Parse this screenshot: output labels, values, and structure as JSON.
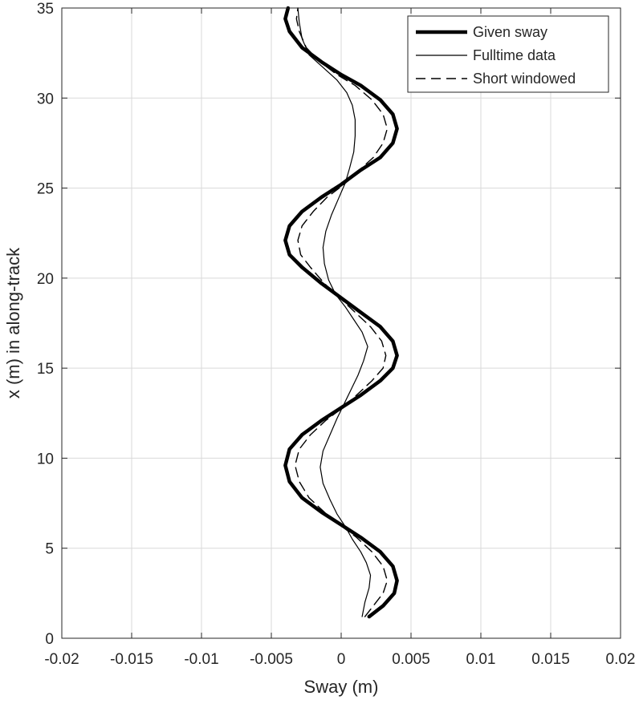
{
  "chart_data": {
    "type": "line",
    "title": "",
    "xlabel": "Sway (m)",
    "ylabel": "x (m) in along-track",
    "xlim": [
      -0.02,
      0.02
    ],
    "ylim": [
      0,
      35
    ],
    "xticks": [
      -0.02,
      -0.015,
      -0.01,
      -0.005,
      0,
      0.005,
      0.01,
      0.015,
      0.02
    ],
    "xtick_labels": [
      "-0.02",
      "-0.015",
      "-0.01",
      "-0.005",
      "0",
      "0.005",
      "0.01",
      "0.015",
      "0.02"
    ],
    "yticks": [
      0,
      5,
      10,
      15,
      20,
      25,
      30,
      35
    ],
    "ytick_labels": [
      "0",
      "5",
      "10",
      "15",
      "20",
      "25",
      "30",
      "35"
    ],
    "grid": true,
    "legend_position": "top-right",
    "series": [
      {
        "name": "Given sway",
        "style": "thick-solid",
        "color": "#000000",
        "points": [
          [
            0.002,
            1.2
          ],
          [
            0.003,
            1.8
          ],
          [
            0.0038,
            2.5
          ],
          [
            0.004,
            3.2
          ],
          [
            0.0037,
            4.0
          ],
          [
            0.0028,
            4.8
          ],
          [
            0.0014,
            5.6
          ],
          [
            0.0,
            6.3
          ],
          [
            -0.0014,
            7.0
          ],
          [
            -0.0028,
            7.8
          ],
          [
            -0.0037,
            8.7
          ],
          [
            -0.004,
            9.6
          ],
          [
            -0.0037,
            10.5
          ],
          [
            -0.0028,
            11.3
          ],
          [
            -0.0014,
            12.1
          ],
          [
            0.0,
            12.8
          ],
          [
            0.0014,
            13.5
          ],
          [
            0.0028,
            14.3
          ],
          [
            0.0037,
            15.0
          ],
          [
            0.004,
            15.7
          ],
          [
            0.0037,
            16.5
          ],
          [
            0.0028,
            17.3
          ],
          [
            0.0014,
            18.1
          ],
          [
            0.0,
            18.9
          ],
          [
            -0.0014,
            19.7
          ],
          [
            -0.0028,
            20.6
          ],
          [
            -0.0037,
            21.3
          ],
          [
            -0.004,
            22.1
          ],
          [
            -0.0037,
            22.9
          ],
          [
            -0.0028,
            23.7
          ],
          [
            -0.0014,
            24.5
          ],
          [
            0.0,
            25.2
          ],
          [
            0.0014,
            26.0
          ],
          [
            0.0028,
            26.7
          ],
          [
            0.0037,
            27.5
          ],
          [
            0.004,
            28.3
          ],
          [
            0.0037,
            29.1
          ],
          [
            0.0028,
            29.9
          ],
          [
            0.0014,
            30.7
          ],
          [
            0.0,
            31.3
          ],
          [
            -0.0014,
            32.0
          ],
          [
            -0.0028,
            32.8
          ],
          [
            -0.0037,
            33.7
          ],
          [
            -0.004,
            34.4
          ],
          [
            -0.0038,
            35.0
          ]
        ]
      },
      {
        "name": "Fulltime data",
        "style": "thin-solid",
        "color": "#000000",
        "points": [
          [
            0.0015,
            1.2
          ],
          [
            0.0017,
            2.0
          ],
          [
            0.002,
            2.8
          ],
          [
            0.0021,
            3.5
          ],
          [
            0.0018,
            4.2
          ],
          [
            0.0014,
            4.8
          ],
          [
            0.0008,
            5.5
          ],
          [
            0.0003,
            6.2
          ],
          [
            -0.0003,
            6.9
          ],
          [
            -0.0008,
            7.7
          ],
          [
            -0.0013,
            8.6
          ],
          [
            -0.0015,
            9.5
          ],
          [
            -0.0013,
            10.4
          ],
          [
            -0.0008,
            11.3
          ],
          [
            -0.0003,
            12.2
          ],
          [
            0.0002,
            13.0
          ],
          [
            0.0007,
            13.8
          ],
          [
            0.0012,
            14.6
          ],
          [
            0.0016,
            15.4
          ],
          [
            0.0019,
            16.2
          ],
          [
            0.0015,
            17.0
          ],
          [
            0.0009,
            17.7
          ],
          [
            0.0003,
            18.4
          ],
          [
            -0.0004,
            19.1
          ],
          [
            -0.0009,
            19.9
          ],
          [
            -0.0012,
            20.8
          ],
          [
            -0.0013,
            21.7
          ],
          [
            -0.0011,
            22.6
          ],
          [
            -0.0007,
            23.5
          ],
          [
            -0.0002,
            24.4
          ],
          [
            0.0003,
            25.3
          ],
          [
            0.0006,
            26.1
          ],
          [
            0.0009,
            27.0
          ],
          [
            0.001,
            27.9
          ],
          [
            0.001,
            28.8
          ],
          [
            0.0008,
            29.6
          ],
          [
            0.0004,
            30.3
          ],
          [
            -0.0003,
            31.0
          ],
          [
            -0.0013,
            31.7
          ],
          [
            -0.0023,
            32.4
          ],
          [
            -0.0028,
            33.3
          ],
          [
            -0.003,
            34.2
          ],
          [
            -0.0031,
            35.0
          ]
        ]
      },
      {
        "name": "Short windowed",
        "style": "dashed",
        "color": "#000000",
        "points": [
          [
            0.0017,
            1.2
          ],
          [
            0.0023,
            1.8
          ],
          [
            0.003,
            2.5
          ],
          [
            0.0033,
            3.2
          ],
          [
            0.003,
            4.0
          ],
          [
            0.0022,
            4.8
          ],
          [
            0.0011,
            5.6
          ],
          [
            -0.0001,
            6.3
          ],
          [
            -0.0012,
            7.0
          ],
          [
            -0.0023,
            7.8
          ],
          [
            -0.003,
            8.7
          ],
          [
            -0.0033,
            9.6
          ],
          [
            -0.003,
            10.5
          ],
          [
            -0.0022,
            11.3
          ],
          [
            -0.0011,
            12.1
          ],
          [
            0.0001,
            12.8
          ],
          [
            0.0011,
            13.5
          ],
          [
            0.0022,
            14.3
          ],
          [
            0.003,
            15.0
          ],
          [
            0.0032,
            15.7
          ],
          [
            0.0029,
            16.5
          ],
          [
            0.0021,
            17.3
          ],
          [
            0.001,
            18.1
          ],
          [
            -0.0001,
            18.9
          ],
          [
            -0.0012,
            19.7
          ],
          [
            -0.0022,
            20.6
          ],
          [
            -0.0029,
            21.3
          ],
          [
            -0.0031,
            22.1
          ],
          [
            -0.0028,
            22.9
          ],
          [
            -0.002,
            23.7
          ],
          [
            -0.001,
            24.5
          ],
          [
            0.0002,
            25.2
          ],
          [
            0.0013,
            26.0
          ],
          [
            0.0023,
            26.7
          ],
          [
            0.003,
            27.5
          ],
          [
            0.0033,
            28.3
          ],
          [
            0.003,
            29.1
          ],
          [
            0.0022,
            29.9
          ],
          [
            0.001,
            30.7
          ],
          [
            -0.0003,
            31.3
          ],
          [
            -0.0015,
            32.0
          ],
          [
            -0.0025,
            32.8
          ],
          [
            -0.003,
            33.7
          ],
          [
            -0.0032,
            34.4
          ],
          [
            -0.0031,
            35.0
          ]
        ]
      }
    ]
  }
}
